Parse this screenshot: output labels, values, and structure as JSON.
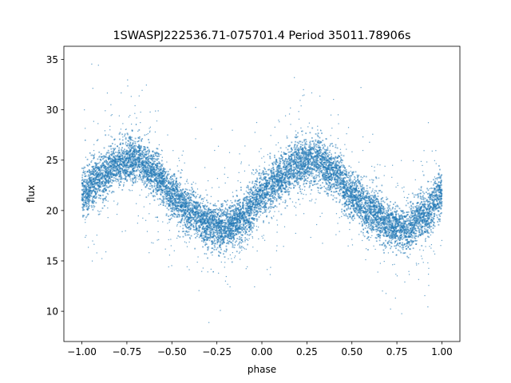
{
  "chart_data": {
    "type": "scatter",
    "title": "1SWASPJ222536.71-075701.4 Period 35011.78906s",
    "xlabel": "phase",
    "ylabel": "flux",
    "xlim": [
      -1.1,
      1.1
    ],
    "ylim": [
      7.0,
      36.3
    ],
    "xticks": [
      -1.0,
      -0.75,
      -0.5,
      -0.25,
      0.0,
      0.25,
      0.5,
      0.75,
      1.0
    ],
    "xtick_labels": [
      "−1.00",
      "−0.75",
      "−0.50",
      "−0.25",
      "0.00",
      "0.25",
      "0.50",
      "0.75",
      "1.00"
    ],
    "yticks": [
      10,
      15,
      20,
      25,
      30,
      35
    ],
    "ytick_labels": [
      "10",
      "15",
      "20",
      "25",
      "30",
      "35"
    ],
    "grid": false,
    "legend": "none",
    "marker_color": "#1f77b4",
    "series": [
      {
        "phase": [
          -1.0,
          -0.9,
          -0.8,
          -0.7,
          -0.6,
          -0.5,
          -0.4,
          -0.3,
          -0.2,
          -0.1,
          0.0,
          0.1,
          0.2,
          0.3,
          0.4,
          0.5,
          0.6,
          0.7,
          0.8,
          0.9,
          1.0
        ],
        "flux_mean": [
          21.7,
          23.2,
          24.6,
          25.1,
          23.8,
          21.5,
          20.0,
          18.7,
          18.1,
          19.4,
          21.7,
          23.2,
          24.6,
          25.1,
          23.8,
          21.5,
          20.0,
          18.7,
          18.1,
          19.4,
          21.7
        ],
        "flux_spread": 1.1,
        "outlier_range": [
          8.5,
          35.0
        ]
      }
    ]
  }
}
